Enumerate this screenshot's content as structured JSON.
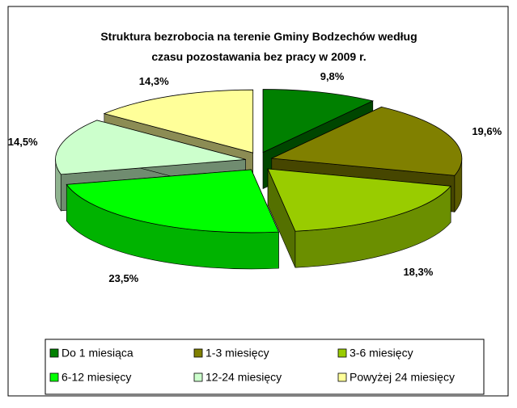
{
  "chart_data": {
    "type": "pie3d",
    "title": [
      "Struktura bezrobocia na terenie Gminy Bodzechów według",
      "czasu pozostawania bez pracy w 2009 r."
    ],
    "categories": [
      "Do 1 miesiąca",
      "1-3 miesięcy",
      "3-6 miesięcy",
      "6-12 miesięcy",
      "12-24 miesięcy",
      "Powyżej 24 miesięcy"
    ],
    "values": [
      9.8,
      19.6,
      18.3,
      23.5,
      14.5,
      14.3
    ],
    "value_labels": [
      "9,8%",
      "19,6%",
      "18,3%",
      "23,5%",
      "14,5%",
      "14,3%"
    ],
    "colors": [
      "#008000",
      "#808000",
      "#99cc00",
      "#00ff00",
      "#ccffcc",
      "#ffff99"
    ]
  }
}
